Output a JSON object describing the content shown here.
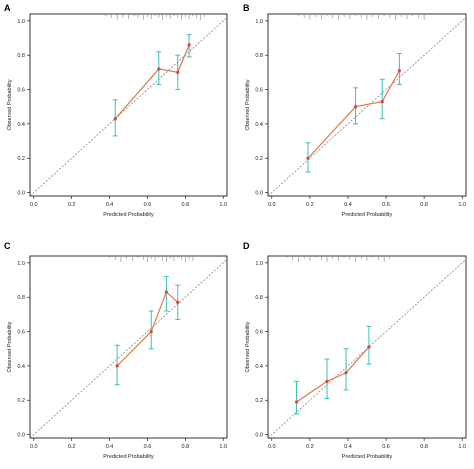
{
  "colors": {
    "calibration_line": "#e07a4a",
    "error_bars": "#3bbfb8",
    "points": "#e0413a",
    "ideal_line": "#777777",
    "rug": "#888888"
  },
  "chart_data": [
    {
      "type": "line",
      "panel_label": "A",
      "xlabel": "Predicted Probability",
      "ylabel": "Observed Probability",
      "xlim": [
        -0.02,
        1.02
      ],
      "ylim": [
        -0.02,
        1.04
      ],
      "x_ticks": [
        "0.0",
        "0.2",
        "0.4",
        "0.6",
        "0.8",
        "1.0"
      ],
      "y_ticks": [
        "0.0",
        "0.2",
        "0.4",
        "0.6",
        "0.8",
        "1.0"
      ],
      "ideal_line": "diagonal",
      "points": [
        {
          "x": 0.43,
          "y": 0.43,
          "lo": 0.33,
          "hi": 0.54
        },
        {
          "x": 0.66,
          "y": 0.72,
          "lo": 0.63,
          "hi": 0.82
        },
        {
          "x": 0.76,
          "y": 0.7,
          "lo": 0.6,
          "hi": 0.8
        },
        {
          "x": 0.82,
          "y": 0.86,
          "lo": 0.79,
          "hi": 0.92
        }
      ],
      "rug": [
        0.38,
        0.41,
        0.44,
        0.47,
        0.5,
        0.53,
        0.55,
        0.58,
        0.6,
        0.62,
        0.64,
        0.66,
        0.68,
        0.7,
        0.72,
        0.74,
        0.76,
        0.78,
        0.8,
        0.82,
        0.84,
        0.86,
        0.88,
        0.9
      ]
    },
    {
      "type": "line",
      "panel_label": "B",
      "xlabel": "Predicted Probability",
      "ylabel": "Observed Probability",
      "xlim": [
        -0.02,
        1.02
      ],
      "ylim": [
        -0.02,
        1.04
      ],
      "x_ticks": [
        "0.0",
        "0.2",
        "0.4",
        "0.6",
        "0.8",
        "1.0"
      ],
      "y_ticks": [
        "0.0",
        "0.2",
        "0.4",
        "0.6",
        "0.8",
        "1.0"
      ],
      "ideal_line": "diagonal",
      "points": [
        {
          "x": 0.19,
          "y": 0.2,
          "lo": 0.12,
          "hi": 0.29
        },
        {
          "x": 0.44,
          "y": 0.5,
          "lo": 0.4,
          "hi": 0.61
        },
        {
          "x": 0.58,
          "y": 0.53,
          "lo": 0.43,
          "hi": 0.66
        },
        {
          "x": 0.67,
          "y": 0.71,
          "lo": 0.63,
          "hi": 0.81
        }
      ],
      "rug": [
        0.14,
        0.17,
        0.2,
        0.23,
        0.26,
        0.29,
        0.32,
        0.35,
        0.38,
        0.41,
        0.44,
        0.47,
        0.5,
        0.53,
        0.56,
        0.59,
        0.62,
        0.65,
        0.68,
        0.71,
        0.74,
        0.77,
        0.8
      ]
    },
    {
      "type": "line",
      "panel_label": "C",
      "xlabel": "Predicted Probability",
      "ylabel": "Observed Probability",
      "xlim": [
        -0.02,
        1.02
      ],
      "ylim": [
        -0.02,
        1.04
      ],
      "x_ticks": [
        "0.0",
        "0.2",
        "0.4",
        "0.6",
        "0.8",
        "1.0"
      ],
      "y_ticks": [
        "0.0",
        "0.2",
        "0.4",
        "0.6",
        "0.8",
        "1.0"
      ],
      "ideal_line": "diagonal",
      "points": [
        {
          "x": 0.44,
          "y": 0.4,
          "lo": 0.29,
          "hi": 0.52
        },
        {
          "x": 0.62,
          "y": 0.6,
          "lo": 0.5,
          "hi": 0.72
        },
        {
          "x": 0.7,
          "y": 0.83,
          "lo": 0.72,
          "hi": 0.92
        },
        {
          "x": 0.76,
          "y": 0.77,
          "lo": 0.67,
          "hi": 0.87
        }
      ],
      "rug": [
        0.4,
        0.43,
        0.46,
        0.49,
        0.52,
        0.55,
        0.58,
        0.6,
        0.62,
        0.64,
        0.66,
        0.68,
        0.7,
        0.72,
        0.74,
        0.76,
        0.78,
        0.8,
        0.82,
        0.84
      ]
    },
    {
      "type": "line",
      "panel_label": "D",
      "xlabel": "Predicted Probability",
      "ylabel": "Observed Probability",
      "xlim": [
        -0.02,
        1.02
      ],
      "ylim": [
        -0.02,
        1.04
      ],
      "x_ticks": [
        "0.0",
        "0.2",
        "0.4",
        "0.6",
        "0.8",
        "1.0"
      ],
      "y_ticks": [
        "0.0",
        "0.2",
        "0.4",
        "0.6",
        "0.8",
        "1.0"
      ],
      "ideal_line": "diagonal",
      "points": [
        {
          "x": 0.13,
          "y": 0.19,
          "lo": 0.12,
          "hi": 0.31
        },
        {
          "x": 0.29,
          "y": 0.31,
          "lo": 0.21,
          "hi": 0.44
        },
        {
          "x": 0.39,
          "y": 0.36,
          "lo": 0.26,
          "hi": 0.5
        },
        {
          "x": 0.51,
          "y": 0.51,
          "lo": 0.41,
          "hi": 0.63
        }
      ],
      "rug": [
        0.08,
        0.11,
        0.14,
        0.17,
        0.2,
        0.23,
        0.26,
        0.29,
        0.32,
        0.35,
        0.38,
        0.41,
        0.44,
        0.47,
        0.5,
        0.53,
        0.56,
        0.59,
        0.62
      ]
    }
  ]
}
